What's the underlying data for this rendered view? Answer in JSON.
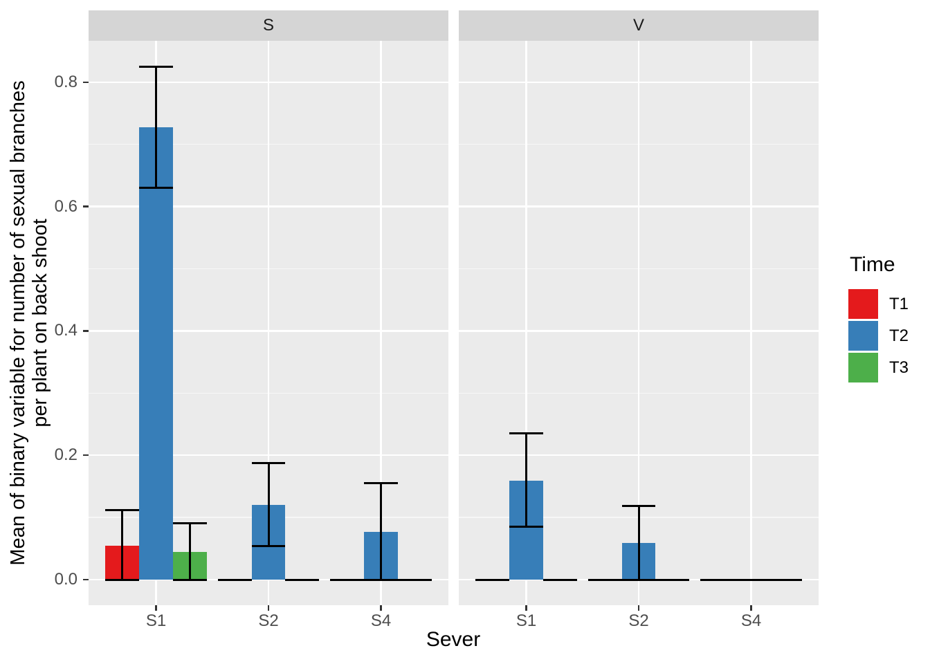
{
  "chart_data": {
    "type": "bar",
    "subtype": "grouped-dodged-with-errorbars",
    "xlabel": "Sever",
    "ylabel": "Mean of binary variable for number of sexual branches per plant on back shoot",
    "ylabel_lines": [
      "Mean of binary variable for number of sexual branches",
      "per plant on back shoot"
    ],
    "y_ticks": [
      "0.0",
      "0.2",
      "0.4",
      "0.6",
      "0.8"
    ],
    "y_tick_values": [
      0.0,
      0.2,
      0.4,
      0.6,
      0.8
    ],
    "y_minor_gridlines": [
      0.1,
      0.3,
      0.5,
      0.7
    ],
    "ylim": [
      -0.041,
      0.866
    ],
    "grid": true,
    "categories": [
      "S1",
      "S2",
      "S4"
    ],
    "facets": [
      {
        "label": "S",
        "series": [
          {
            "name": "T1",
            "color": "#E41A1C",
            "values": [
              0.055,
              0,
              0
            ],
            "ymin": [
              0,
              0,
              0
            ],
            "ymax": [
              0.112,
              0,
              0
            ]
          },
          {
            "name": "T2",
            "color": "#377EB8",
            "values": [
              0.727,
              0.12,
              0.077
            ],
            "ymin": [
              0.63,
              0.054,
              0
            ],
            "ymax": [
              0.825,
              0.187,
              0.155
            ]
          },
          {
            "name": "T3",
            "color": "#4DAF4A",
            "values": [
              0.045,
              0,
              0
            ],
            "ymin": [
              0,
              0,
              0
            ],
            "ymax": [
              0.091,
              0,
              0
            ]
          }
        ]
      },
      {
        "label": "V",
        "series": [
          {
            "name": "T1",
            "color": "#E41A1C",
            "values": [
              0,
              0,
              0
            ],
            "ymin": [
              0,
              0,
              0
            ],
            "ymax": [
              0,
              0,
              0
            ]
          },
          {
            "name": "T2",
            "color": "#377EB8",
            "values": [
              0.159,
              0.059,
              0
            ],
            "ymin": [
              0.085,
              0,
              0
            ],
            "ymax": [
              0.235,
              0.119,
              0
            ]
          },
          {
            "name": "T3",
            "color": "#4DAF4A",
            "values": [
              0,
              0,
              0
            ],
            "ymin": [
              0,
              0,
              0
            ],
            "ymax": [
              0,
              0,
              0
            ]
          }
        ]
      }
    ],
    "legend": {
      "title": "Time",
      "position": "right",
      "entries": [
        {
          "label": "T1",
          "color": "#E41A1C"
        },
        {
          "label": "T2",
          "color": "#377EB8"
        },
        {
          "label": "T3",
          "color": "#4DAF4A"
        }
      ]
    },
    "theme": {
      "panel_background": "#EBEBEB",
      "strip_background": "#D5D5D5",
      "major_gridline_color": "#FFFFFF",
      "minor_gridline_color": "#F7F7F7",
      "axis_text_color": "#4D4D4D",
      "errorbar_color": "#000000"
    }
  }
}
